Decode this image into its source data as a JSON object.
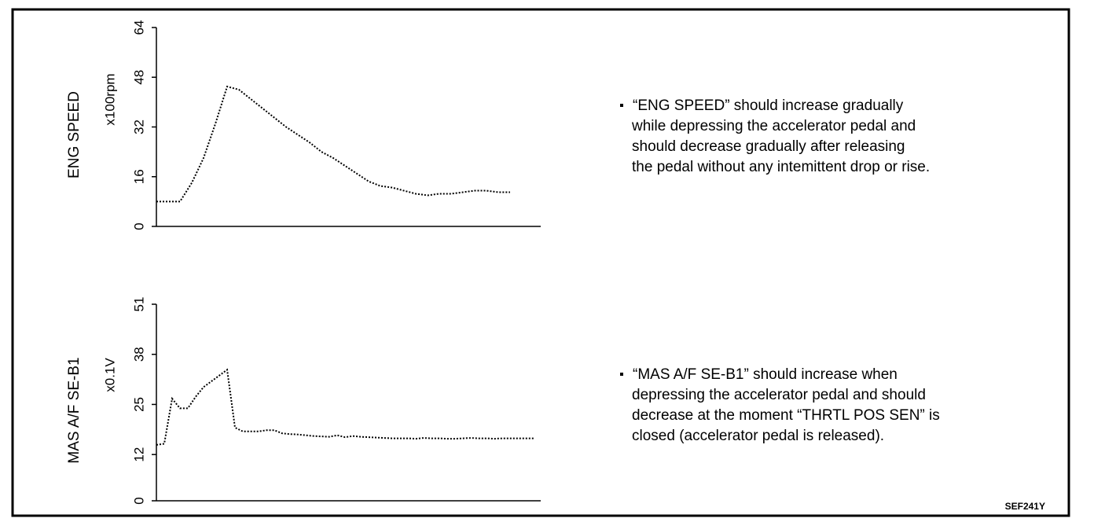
{
  "chart_data": [
    {
      "type": "line",
      "ylabel": "ENG SPEED",
      "unit": "x100rpm",
      "ylim": [
        0,
        64
      ],
      "yticks": [
        0,
        16,
        32,
        48,
        64
      ],
      "values": [
        8,
        8,
        8,
        14,
        22,
        33,
        45,
        44,
        41,
        38,
        35,
        32,
        29.5,
        27,
        24,
        22,
        19.5,
        17,
        14.5,
        13,
        12.5,
        11.5,
        10.5,
        10,
        10.5,
        10.5,
        11,
        11.5,
        11.5,
        11,
        11
      ],
      "color": "#000000",
      "notes": [
        "“ENG SPEED” should increase gradually",
        "while depressing the accelerator pedal and",
        "should decrease gradually after releasing",
        "the pedal without any intemittent drop or rise."
      ]
    },
    {
      "type": "line",
      "ylabel": "MAS A/F SE-B1",
      "unit": "x0.1V",
      "ylim": [
        0,
        51
      ],
      "yticks": [
        0,
        12,
        25,
        38,
        51
      ],
      "values": [
        14.5,
        14.8,
        26.5,
        24,
        24,
        27,
        29.5,
        31,
        32.5,
        34,
        19,
        18,
        18,
        18,
        18.3,
        18.3,
        17.5,
        17.3,
        17.2,
        17,
        16.8,
        16.7,
        16.6,
        17,
        16.5,
        16.8,
        16.6,
        16.5,
        16.4,
        16.3,
        16.2,
        16.2,
        16.2,
        16.1,
        16.3,
        16.2,
        16.2,
        16.1,
        16.1,
        16.2,
        16.3,
        16.2,
        16.2,
        16.1,
        16.2,
        16.2,
        16.2,
        16.2,
        16.2
      ],
      "color": "#000000",
      "notes": [
        "“MAS A/F SE-B1” should increase when",
        "depressing the accelerator pedal and  should",
        "decrease at the moment “THRTL POS SEN” is",
        "closed (accelerator pedal is released)."
      ]
    }
  ],
  "figure_code": "SEF241Y"
}
